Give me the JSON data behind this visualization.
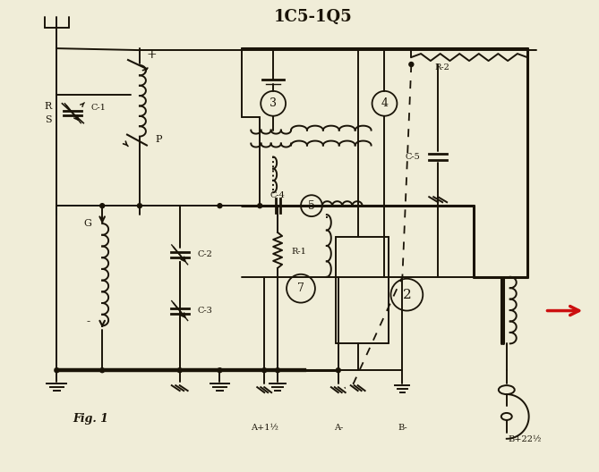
{
  "title": "1C5-1Q5",
  "fig_label": "Fig. 1",
  "bg_color": "#f0edd8",
  "line_color": "#1a1408",
  "red_color": "#cc1010",
  "labels": {
    "R": "R",
    "S": "S",
    "C1": "C-1",
    "P": "P",
    "G": "G",
    "C2": "C-2",
    "C3": "C-3",
    "C4": "C-4",
    "R1": "R-1",
    "n3": "3",
    "n5": "5",
    "n7": "7",
    "n2": "2",
    "n4": "4",
    "R2": "R-2",
    "C5": "C-5",
    "Aplus": "A+1½",
    "Aminus": "A-",
    "Bminus": "B-",
    "Bplus": "B+22½",
    "plus": "+",
    "minus": "-"
  }
}
